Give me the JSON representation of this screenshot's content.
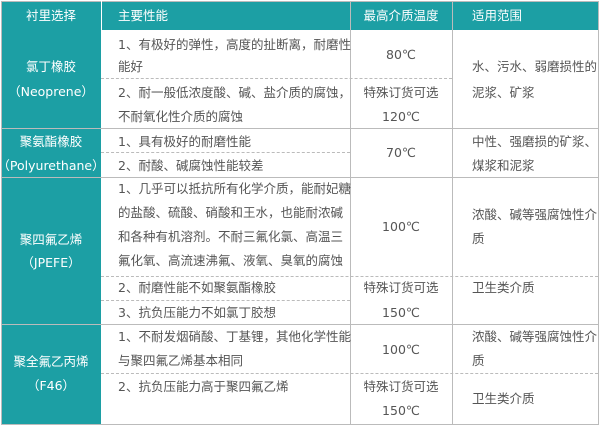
{
  "colors": {
    "header_bg": "#1c9fa4",
    "text": "#555555",
    "header_text": "#ffffff"
  },
  "header": [
    "衬里选择",
    "主要性能",
    "最高介质温度",
    "适用范围"
  ],
  "groups": [
    {
      "material": [
        "氯丁橡胶",
        "（Neoprene）"
      ],
      "properties": [
        "1、有极好的弹性，高度的扯断离，耐磨性",
        "能好",
        "2、耐一般低浓度酸、碱、盐介质的腐蚀，",
        "不耐氧化性介质的腐蚀"
      ],
      "temps": [
        "80℃",
        "特殊订货可选",
        "120℃"
      ],
      "applications": [
        "水、污水、弱磨损性的",
        "泥浆、矿浆"
      ]
    },
    {
      "material": [
        "聚氨酯橡胶",
        "（Polyurethane）"
      ],
      "properties": [
        "1、具有极好的耐磨性能",
        "2、耐酸、碱腐蚀性能较差"
      ],
      "temps": [
        "70℃"
      ],
      "applications": [
        "中性、强磨损的矿浆、",
        "煤浆和泥浆"
      ]
    },
    {
      "material": [
        "聚四氟乙烯",
        "（JPEFE）"
      ],
      "properties": [
        "1、几乎可以抵抗所有化学介质，能耐妃糖",
        "的盐酸、硫酸、硝酸和王水，也能耐浓碱",
        "和各种有机溶剂。不耐三氟化氯、高温三",
        "氟化氧、高流速沸氟、液氧、臭氧的腐蚀",
        "2、耐磨性能不如聚氨酯橡胶",
        "3、抗负压能力不如氯丁胶想"
      ],
      "temps": [
        "100℃",
        "特殊订货可选",
        "150℃"
      ],
      "applications": [
        "浓酸、碱等强腐蚀性介",
        "质",
        "卫生类介质"
      ]
    },
    {
      "material": [
        "聚全氟乙丙烯",
        "（F46）"
      ],
      "properties": [
        "1、不耐发烟硝酸、丁基锂，其他化学性能",
        "与聚四氟乙烯基本相同",
        "2、抗负压能力高于聚四氟乙烯"
      ],
      "temps": [
        "100℃",
        "特殊订货可选",
        "150℃"
      ],
      "applications": [
        "浓酸、碱等强腐蚀性介",
        "质",
        "卫生类介质"
      ]
    }
  ]
}
